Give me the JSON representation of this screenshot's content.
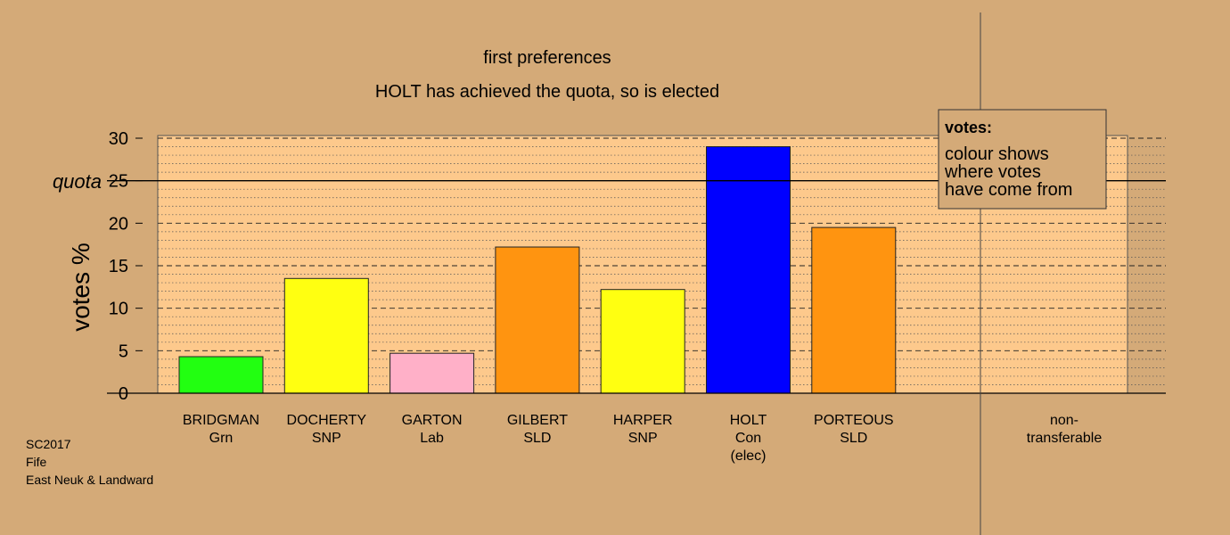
{
  "chart_data": {
    "type": "bar",
    "title": "first preferences",
    "subtitle": "HOLT has achieved the quota, so is elected",
    "ylabel": "votes %",
    "ylim": [
      0,
      30
    ],
    "yticks": [
      0,
      5,
      10,
      15,
      20,
      25,
      30
    ],
    "quota": {
      "label": "quota",
      "value": 25
    },
    "categories": [
      {
        "lines": [
          "BRIDGMAN",
          "Grn"
        ],
        "value": 4.3,
        "color": "#22ff11"
      },
      {
        "lines": [
          "DOCHERTY",
          "SNP"
        ],
        "value": 13.5,
        "color": "#ffff11"
      },
      {
        "lines": [
          "GARTON",
          "Lab"
        ],
        "value": 4.7,
        "color": "#ffb0c8"
      },
      {
        "lines": [
          "GILBERT",
          "SLD"
        ],
        "value": 17.2,
        "color": "#ff9410"
      },
      {
        "lines": [
          "HARPER",
          "SNP"
        ],
        "value": 12.2,
        "color": "#ffff11"
      },
      {
        "lines": [
          "HOLT",
          "Con",
          "(elec)"
        ],
        "value": 29.0,
        "color": "#0000ff"
      },
      {
        "lines": [
          "PORTEOUS",
          "SLD"
        ],
        "value": 19.5,
        "color": "#ff9410"
      }
    ],
    "nontransferable": {
      "lines": [
        "non-",
        "transferable"
      ],
      "value": 0
    },
    "legend": {
      "title": "votes:",
      "lines": [
        "colour shows",
        "where votes",
        "have come from"
      ]
    }
  },
  "footer": {
    "lines": [
      "SC2017",
      "Fife",
      "East Neuk & Landward"
    ]
  },
  "colors": {
    "background": "#d4aa78",
    "plot_area": "#fdc98c"
  }
}
